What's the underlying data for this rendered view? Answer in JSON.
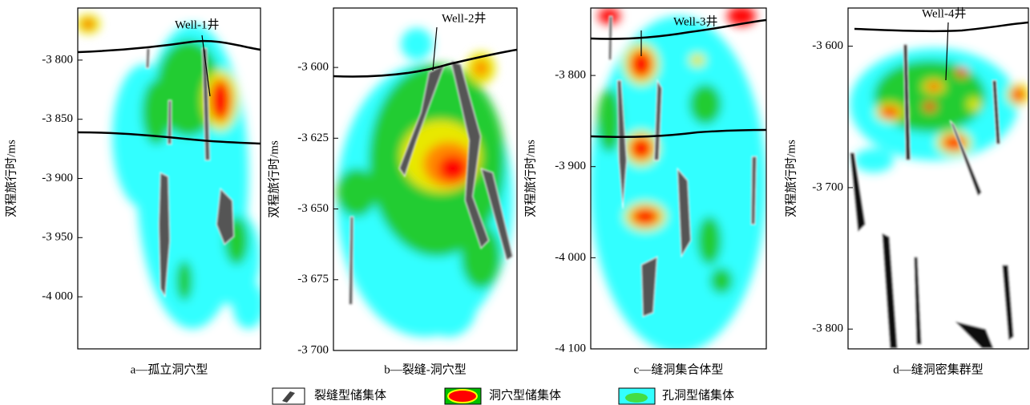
{
  "panels": [
    {
      "well": "Well-1井",
      "axis_label": "双程旅行时/ms",
      "ylim": [
        -3756,
        -4044
      ],
      "ticks": [
        {
          "value": -3800,
          "label": "-3 800"
        },
        {
          "value": -3850,
          "label": "-3 850"
        },
        {
          "value": -3900,
          "label": "-3 900"
        },
        {
          "value": -3950,
          "label": "-3 950"
        },
        {
          "value": -4000,
          "label": "-4 000"
        }
      ],
      "caption": "a—孤立洞穴型"
    },
    {
      "well": "Well-2井",
      "axis_label": "双程旅行时/ms",
      "ylim": [
        -3579,
        -3700
      ],
      "ticks": [
        {
          "value": -3600,
          "label": "-3 600"
        },
        {
          "value": -3625,
          "label": "-3 625"
        },
        {
          "value": -3650,
          "label": "-3 650"
        },
        {
          "value": -3675,
          "label": "-3 675"
        },
        {
          "value": -3700,
          "label": "-3 700"
        }
      ],
      "caption": "b—裂缝-洞穴型"
    },
    {
      "well": "Well-3井",
      "axis_label": "双程旅行时/ms",
      "ylim": [
        -3726,
        -4100
      ],
      "ticks": [
        {
          "value": -3800,
          "label": "-3 800"
        },
        {
          "value": -3900,
          "label": "-3 900"
        },
        {
          "value": -4000,
          "label": "-4 000"
        },
        {
          "value": -4100,
          "label": "-4 100"
        }
      ],
      "caption": "c—缝洞集合体型"
    },
    {
      "well": "Well-4井",
      "axis_label": "双程旅行时/ms",
      "ylim": [
        -3573,
        -3814
      ],
      "ticks": [
        {
          "value": -3600,
          "label": "-3 600"
        },
        {
          "value": -3700,
          "label": "-3 700"
        },
        {
          "value": -3800,
          "label": "-3 800"
        }
      ],
      "caption": "d—缝洞密集群型"
    }
  ],
  "legend": [
    "裂缝型储集体",
    "洞穴型储集体",
    "孔洞型储集体"
  ]
}
